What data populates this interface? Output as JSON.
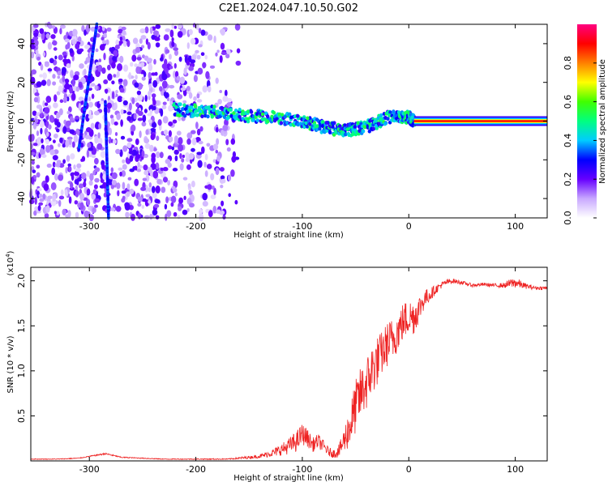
{
  "figure_title": "C2E1.2024.047.10.50.G02",
  "chart_data": [
    {
      "type": "heatmap",
      "panel": "spectrogram",
      "xlabel": "Height of straight line (km)",
      "ylabel": "Frequency (Hz)",
      "xlim": [
        -355,
        130
      ],
      "ylim": [
        -50,
        50
      ],
      "xticks": [
        -300,
        -200,
        -100,
        0,
        100
      ],
      "xtick_labels": [
        "-300",
        "-200",
        "-100",
        "0",
        "100"
      ],
      "yticks": [
        -40,
        -20,
        0,
        20,
        40
      ],
      "ytick_labels": [
        "-40",
        "-20",
        "0",
        "20",
        "40"
      ],
      "colorbar": {
        "label": "Normalized spectral amplitude",
        "range": [
          0.0,
          1.0
        ],
        "ticks": [
          0.0,
          0.2,
          0.4,
          0.6,
          0.8
        ],
        "tick_labels": [
          "0.0",
          "0.2",
          "0.4",
          "0.6",
          "0.8"
        ],
        "colormap": [
          "#ffffff",
          "#c8a8ff",
          "#6600ff",
          "#0000ff",
          "#00ccff",
          "#00ff80",
          "#40ff00",
          "#ffff00",
          "#ff8000",
          "#ff0000",
          "#ff0080"
        ]
      },
      "features": [
        {
          "kind": "scattered_noise",
          "x_range": [
            -355,
            -160
          ],
          "y_range": [
            -50,
            50
          ],
          "amplitude": 0.2
        },
        {
          "kind": "diagonal_streak",
          "x": [
            -310,
            -293
          ],
          "y": [
            -15,
            50
          ],
          "amplitude": 0.25
        },
        {
          "kind": "diagonal_streak",
          "x": [
            -282,
            -285
          ],
          "y": [
            -50,
            10
          ],
          "amplitude": 0.25
        },
        {
          "kind": "ridge",
          "x": [
            -220,
            -190,
            -160,
            -130,
            -100,
            -80,
            -60,
            -40,
            -20,
            0,
            5
          ],
          "y": [
            6,
            5,
            3,
            2,
            0,
            -3,
            -5,
            -3,
            2,
            2,
            0
          ],
          "amplitude": 0.4
        },
        {
          "kind": "steady_line",
          "x_range": [
            5,
            130
          ],
          "y": 0,
          "amplitude": 0.9
        }
      ]
    },
    {
      "type": "line",
      "panel": "snr",
      "xlabel": "Height of straight line (km)",
      "ylabel": "SNR (10 * v/v)",
      "y_multiplier_label": "(x10",
      "y_multiplier_exponent": "4",
      "y_multiplier_suffix": ")",
      "xlim": [
        -355,
        130
      ],
      "ylim": [
        0,
        2.15
      ],
      "xticks": [
        -300,
        -200,
        -100,
        0,
        100
      ],
      "xtick_labels": [
        "-300",
        "-200",
        "-100",
        "0",
        "100"
      ],
      "yticks": [
        0.5,
        1.0,
        1.5,
        2.0
      ],
      "ytick_labels": [
        "0.5",
        "1.0",
        "1.5",
        "2.0"
      ],
      "series": [
        {
          "color": "#ee2222",
          "x": [
            -355,
            -330,
            -310,
            -300,
            -285,
            -270,
            -250,
            -230,
            -200,
            -170,
            -140,
            -125,
            -115,
            -105,
            -100,
            -95,
            -90,
            -85,
            -80,
            -75,
            -70,
            -65,
            -60,
            -55,
            -50,
            -45,
            -40,
            -35,
            -30,
            -25,
            -20,
            -15,
            -10,
            -5,
            0,
            5,
            10,
            15,
            20,
            25,
            30,
            35,
            40,
            50,
            60,
            70,
            80,
            90,
            95,
            100,
            110,
            120,
            130
          ],
          "y": [
            0.02,
            0.02,
            0.03,
            0.05,
            0.08,
            0.04,
            0.03,
            0.02,
            0.02,
            0.02,
            0.05,
            0.1,
            0.15,
            0.22,
            0.3,
            0.25,
            0.18,
            0.22,
            0.16,
            0.1,
            0.08,
            0.12,
            0.25,
            0.4,
            0.6,
            0.75,
            0.85,
            1.0,
            1.1,
            1.2,
            1.3,
            1.35,
            1.45,
            1.55,
            1.6,
            1.6,
            1.7,
            1.8,
            1.85,
            1.9,
            1.95,
            1.98,
            2.0,
            1.98,
            1.95,
            1.96,
            1.95,
            1.95,
            1.97,
            1.98,
            1.94,
            1.92,
            1.92
          ],
          "noise": [
            0.004,
            0.004,
            0.005,
            0.006,
            0.01,
            0.006,
            0.005,
            0.004,
            0.005,
            0.006,
            0.02,
            0.05,
            0.08,
            0.12,
            0.12,
            0.1,
            0.08,
            0.08,
            0.07,
            0.05,
            0.05,
            0.08,
            0.15,
            0.25,
            0.3,
            0.3,
            0.3,
            0.3,
            0.28,
            0.25,
            0.25,
            0.25,
            0.22,
            0.22,
            0.2,
            0.2,
            0.15,
            0.1,
            0.08,
            0.05,
            0.04,
            0.03,
            0.03,
            0.02,
            0.02,
            0.02,
            0.02,
            0.03,
            0.05,
            0.06,
            0.03,
            0.02,
            0.02
          ]
        }
      ]
    }
  ]
}
